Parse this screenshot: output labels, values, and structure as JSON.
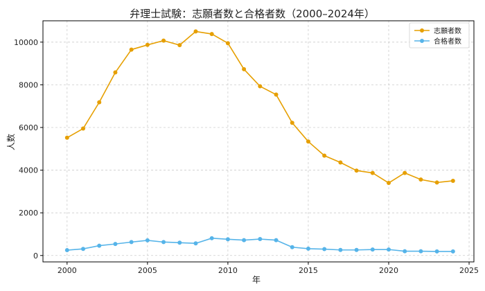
{
  "chart_data": {
    "type": "line",
    "title": "弁理士試験：志願者数と合格者数（2000–2024年）",
    "xlabel": "年",
    "ylabel": "人数",
    "xlim": [
      1998.5,
      2025.3
    ],
    "ylim": [
      -300,
      11000
    ],
    "xticks": [
      2000,
      2005,
      2010,
      2015,
      2020,
      2025
    ],
    "yticks": [
      0,
      2000,
      4000,
      6000,
      8000,
      10000
    ],
    "grid": true,
    "legend_position": "top-right",
    "x": [
      2000,
      2001,
      2002,
      2003,
      2004,
      2005,
      2006,
      2007,
      2008,
      2009,
      2010,
      2011,
      2012,
      2013,
      2014,
      2015,
      2016,
      2017,
      2018,
      2019,
      2020,
      2021,
      2022,
      2023,
      2024
    ],
    "series": [
      {
        "name": "志願者数",
        "color": "#E69F00",
        "values": [
          5520,
          5950,
          7180,
          8580,
          9650,
          9870,
          10070,
          9860,
          10500,
          10380,
          9950,
          8730,
          7930,
          7540,
          6220,
          5340,
          4680,
          4360,
          3980,
          3870,
          3400,
          3870,
          3560,
          3420,
          3500
        ]
      },
      {
        "name": "合格者数",
        "color": "#56B4E9",
        "values": [
          250,
          310,
          460,
          540,
          630,
          710,
          630,
          600,
          570,
          810,
          760,
          720,
          770,
          720,
          390,
          320,
          300,
          260,
          260,
          280,
          280,
          200,
          200,
          190,
          190
        ]
      }
    ]
  }
}
